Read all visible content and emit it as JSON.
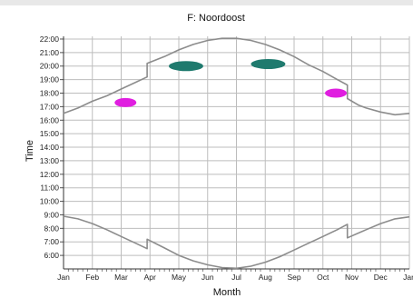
{
  "chart_data": {
    "type": "line",
    "title": "F: Noordoost",
    "xlabel": "Month",
    "ylabel": "Time",
    "categories": [
      "Jan",
      "Feb",
      "Mar",
      "Apr",
      "May",
      "Jun",
      "Jul",
      "Aug",
      "Sep",
      "Oct",
      "Nov",
      "Dec",
      "Jan"
    ],
    "ytick_labels": [
      "6:00",
      "7:00",
      "8:00",
      "9:00",
      "10:00",
      "11:00",
      "12:00",
      "13:00",
      "14:00",
      "15:00",
      "16:00",
      "17:00",
      "18:00",
      "19:00",
      "20:00",
      "21:00",
      "22:00"
    ],
    "ylim": [
      5,
      22.2
    ],
    "xlim": [
      0,
      12
    ],
    "grid": true,
    "colors": {
      "line": "#8c8c8c",
      "grid": "#bdbdbd",
      "teal": "#1f7a6e",
      "magenta": "#e01ee0"
    },
    "series": [
      {
        "x": [
          0,
          0.5,
          1,
          1.5,
          2,
          2.5,
          2.9,
          2.9,
          3.5,
          4,
          4.5,
          5,
          5.5,
          6,
          6.5,
          7,
          7.5,
          8,
          8.5,
          9,
          9.5,
          9.85,
          9.85,
          10.25,
          10.5,
          11,
          11.5,
          12
        ],
        "values": [
          16.5,
          16.9,
          17.4,
          17.8,
          18.3,
          18.8,
          19.2,
          20.2,
          20.7,
          21.2,
          21.6,
          21.9,
          22.05,
          22.05,
          21.9,
          21.6,
          21.2,
          20.7,
          20.1,
          19.6,
          19.0,
          18.6,
          17.6,
          17.1,
          16.9,
          16.6,
          16.4,
          16.5
        ]
      },
      {
        "x": [
          0,
          0.5,
          1,
          1.5,
          2,
          2.5,
          2.9,
          2.9,
          3.5,
          4,
          4.5,
          5,
          5.5,
          6,
          6.5,
          7,
          7.5,
          8,
          8.5,
          9,
          9.5,
          9.85,
          9.85,
          10.5,
          11,
          11.5,
          12
        ],
        "values": [
          8.9,
          8.7,
          8.35,
          7.9,
          7.4,
          6.9,
          6.5,
          7.2,
          6.55,
          6.0,
          5.6,
          5.3,
          5.1,
          5.05,
          5.2,
          5.5,
          5.9,
          6.4,
          6.9,
          7.4,
          7.9,
          8.3,
          7.3,
          7.9,
          8.35,
          8.7,
          8.85
        ]
      }
    ],
    "markers": [
      {
        "x": 2.15,
        "y": 17.3,
        "color": "magenta"
      },
      {
        "x": 4.25,
        "y": 20.0,
        "color": "teal"
      },
      {
        "x": 7.1,
        "y": 20.15,
        "color": "teal"
      },
      {
        "x": 9.45,
        "y": 18.0,
        "color": "magenta"
      }
    ]
  }
}
